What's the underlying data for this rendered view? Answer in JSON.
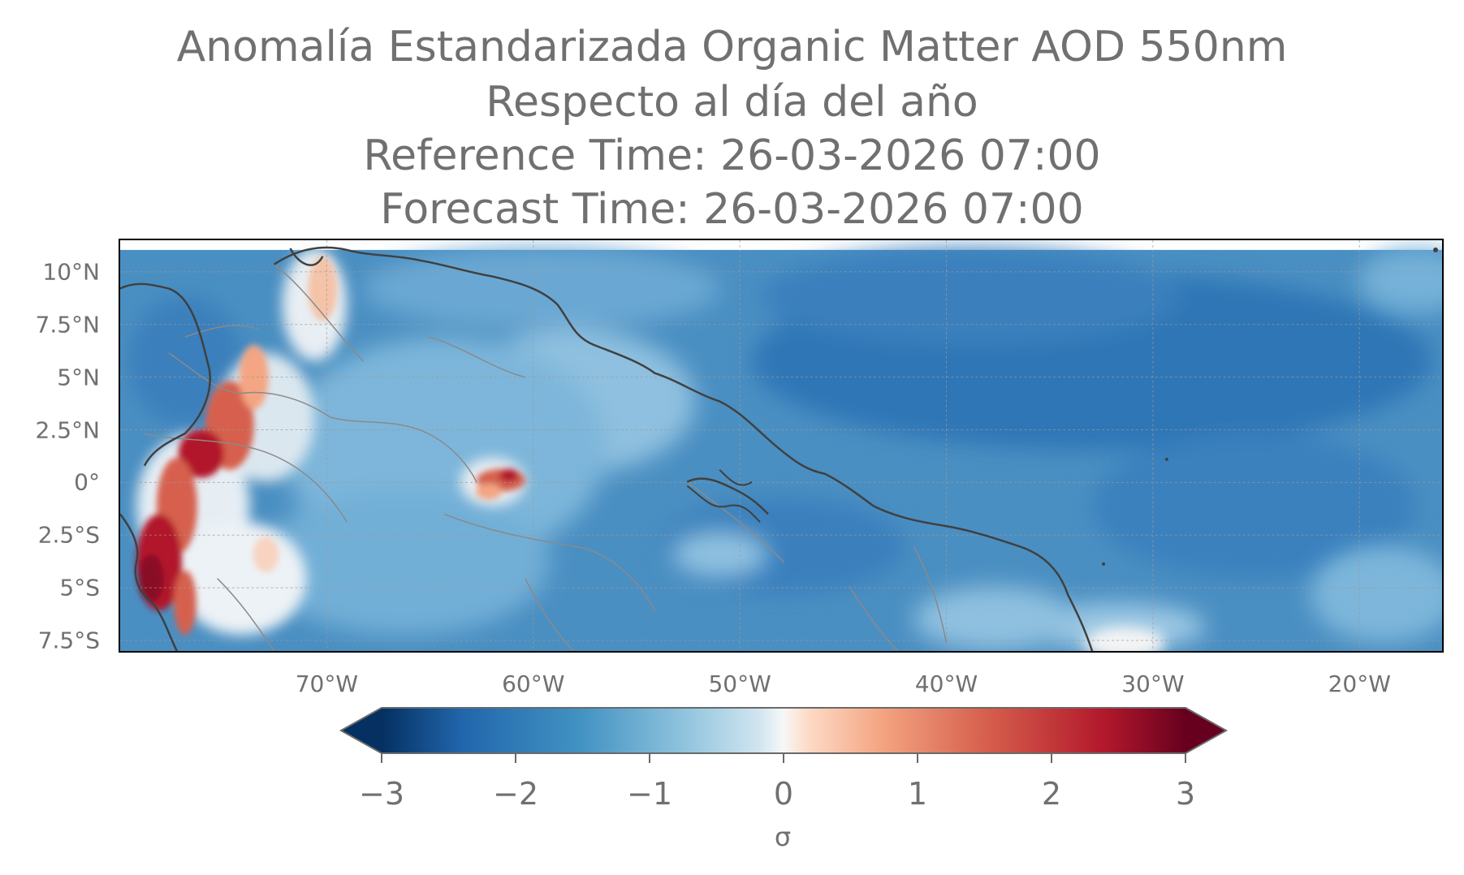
{
  "title": {
    "line1": "Anomalía Estandarizada Organic Matter AOD 550nm",
    "line2": "Respecto al día del año",
    "line3": "Reference Time: 26-03-2026 07:00",
    "line4": "Forecast Time: 26-03-2026 07:00"
  },
  "map": {
    "lon_range": [
      -80,
      -16
    ],
    "lat_range": [
      -8,
      11.5
    ],
    "latitude_labels": [
      "10°N",
      "7.5°N",
      "5°N",
      "2.5°N",
      "0°",
      "2.5°S",
      "5°S",
      "7.5°S"
    ],
    "latitude_values": [
      10,
      7.5,
      5,
      2.5,
      0,
      -2.5,
      -5,
      -7.5
    ],
    "longitude_labels": [
      "70°W",
      "60°W",
      "50°W",
      "40°W",
      "30°W",
      "20°W"
    ],
    "longitude_values": [
      -70,
      -60,
      -50,
      -40,
      -30,
      -20
    ],
    "gridlines": "dashed",
    "colormap": "RdBu_r",
    "ocean_base_color": "#4a8fc2",
    "coastline_color": "#404040",
    "border_color": "#8a8a8a"
  },
  "colorbar": {
    "min": -3,
    "max": 3,
    "ticks": [
      "−3",
      "−2",
      "−1",
      "0",
      "1",
      "2",
      "3"
    ],
    "tick_values": [
      -3,
      -2,
      -1,
      0,
      1,
      2,
      3
    ],
    "extend": "both",
    "unit_label": "σ",
    "color_low": "#053061",
    "color_mid": "#f7f7f7",
    "color_high": "#67001f"
  }
}
